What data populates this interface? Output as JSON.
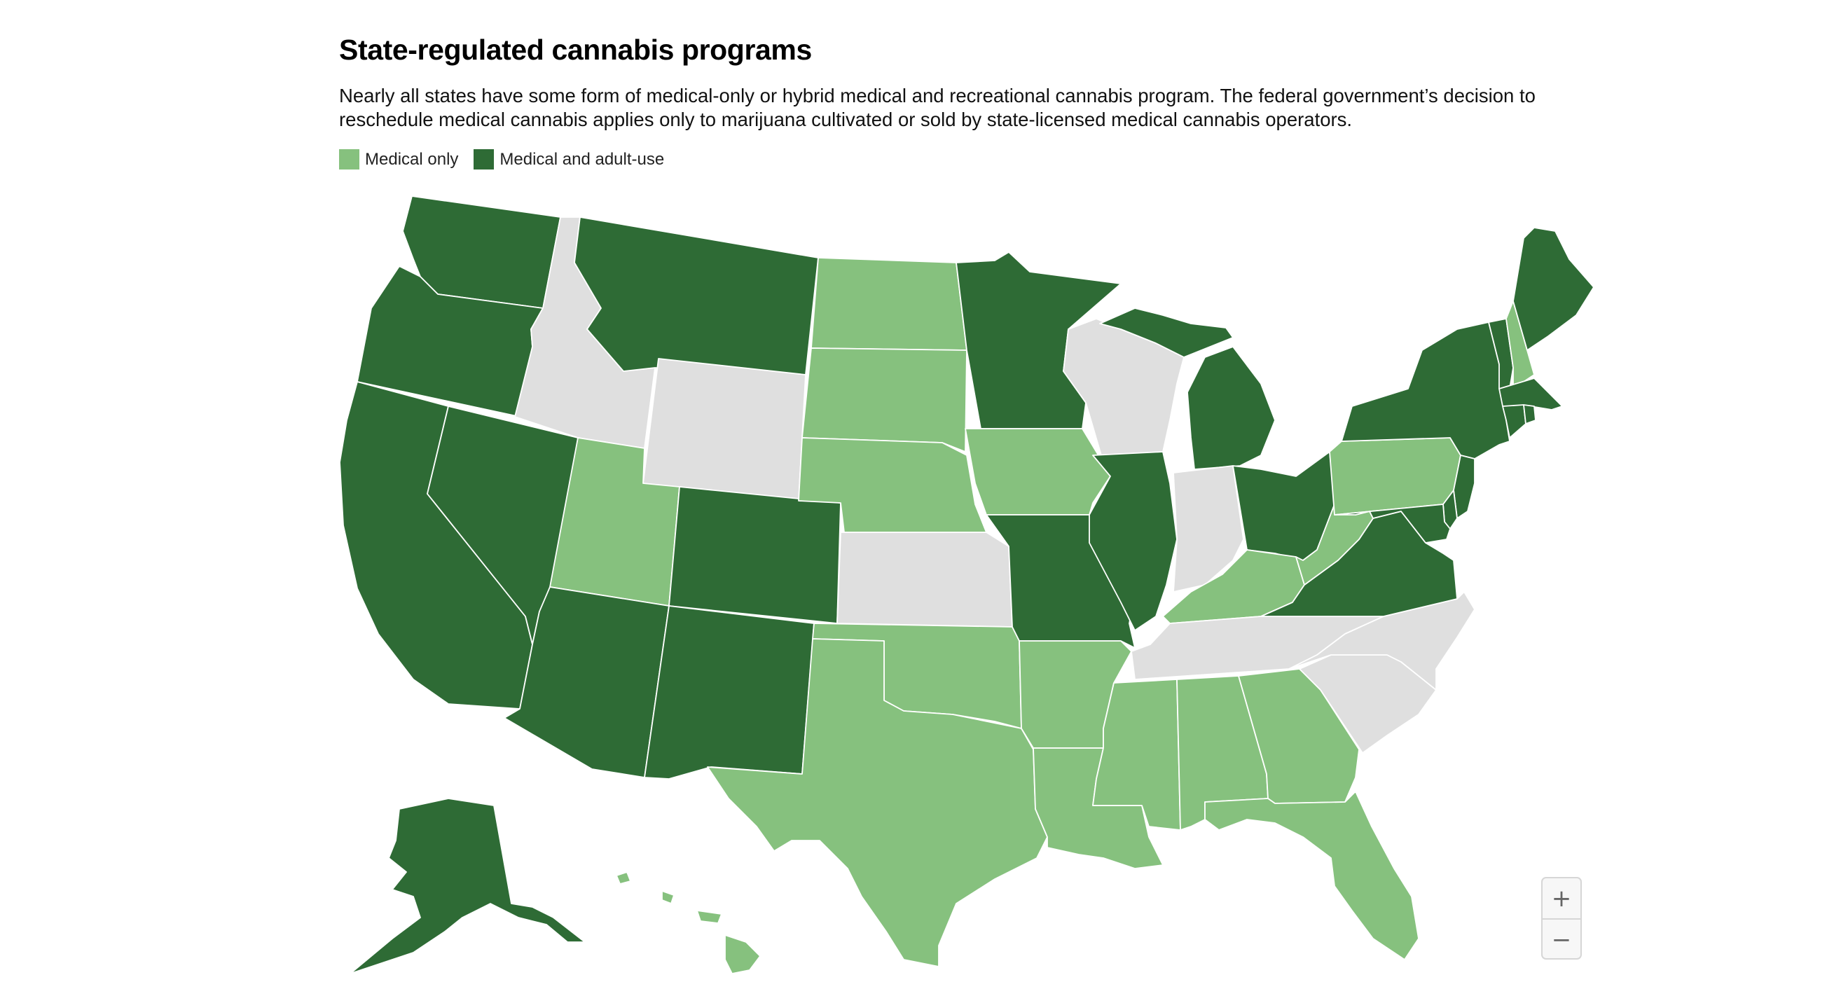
{
  "title": "State-regulated cannabis programs",
  "subtitle": "Nearly all states have some form of medical-only or hybrid medical and recreational cannabis program. The federal government’s decision to reschedule medical cannabis applies only to marijuana cultivated or sold by state-licensed medical cannabis operators.",
  "legend": [
    {
      "key": "medical",
      "label": "Medical only",
      "color": "#86c17e"
    },
    {
      "key": "adult",
      "label": "Medical and adult-use",
      "color": "#2e6b35"
    }
  ],
  "no_program_color": "#dfdfdf",
  "states": {
    "WA": "adult",
    "OR": "adult",
    "CA": "adult",
    "NV": "adult",
    "ID": "none",
    "MT": "adult",
    "WY": "none",
    "UT": "medical",
    "AZ": "adult",
    "CO": "adult",
    "NM": "adult",
    "ND": "medical",
    "SD": "medical",
    "NE": "medical",
    "KS": "none",
    "OK": "medical",
    "TX": "medical",
    "MN": "adult",
    "IA": "medical",
    "MO": "adult",
    "AR": "medical",
    "LA": "medical",
    "WI": "none",
    "IL": "adult",
    "MI": "adult",
    "IN": "none",
    "OH": "adult",
    "KY": "medical",
    "TN": "none",
    "MS": "medical",
    "AL": "medical",
    "GA": "medical",
    "FL": "medical",
    "SC": "none",
    "NC": "none",
    "VA": "adult",
    "WV": "medical",
    "PA": "medical",
    "NY": "adult",
    "VT": "adult",
    "NH": "medical",
    "ME": "adult",
    "MA": "adult",
    "CT": "adult",
    "RI": "adult",
    "NJ": "adult",
    "DE": "adult",
    "MD": "adult",
    "AK": "adult",
    "HI": "medical"
  },
  "zoom": {
    "in": "+",
    "out": "−"
  }
}
